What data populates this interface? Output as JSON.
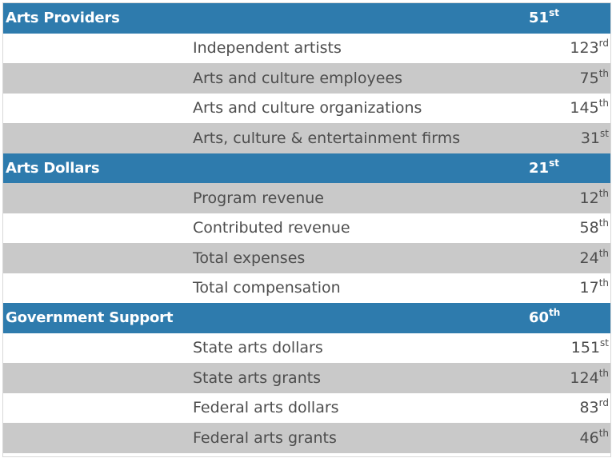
{
  "sections": [
    {
      "label": "Arts Providers",
      "rank": "51",
      "suffix": "st",
      "items": [
        {
          "label": "Independent artists",
          "rank": "123",
          "suffix": "rd"
        },
        {
          "label": "Arts and culture employees",
          "rank": "75",
          "suffix": "th"
        },
        {
          "label": "Arts and culture organizations",
          "rank": "145",
          "suffix": "th"
        },
        {
          "label": "Arts, culture & entertainment firms",
          "rank": "31",
          "suffix": "st"
        }
      ]
    },
    {
      "label": "Arts Dollars",
      "rank": "21",
      "suffix": "st",
      "items": [
        {
          "label": "Program revenue",
          "rank": "12",
          "suffix": "th"
        },
        {
          "label": "Contributed revenue",
          "rank": "58",
          "suffix": "th"
        },
        {
          "label": "Total expenses",
          "rank": "24",
          "suffix": "th"
        },
        {
          "label": "Total compensation",
          "rank": "17",
          "suffix": "th"
        }
      ]
    },
    {
      "label": "Government Support",
      "rank": "60",
      "suffix": "th",
      "items": [
        {
          "label": "State arts dollars",
          "rank": "151",
          "suffix": "st"
        },
        {
          "label": "State arts grants",
          "rank": "124",
          "suffix": "th"
        },
        {
          "label": "Federal arts dollars",
          "rank": "83",
          "suffix": "rd"
        },
        {
          "label": "Federal arts grants",
          "rank": "46",
          "suffix": "th"
        }
      ]
    }
  ],
  "colors": {
    "header_bg": "#2e7bad",
    "alt_row_bg": "#c9c9c9",
    "plain_row_bg": "#ffffff"
  }
}
